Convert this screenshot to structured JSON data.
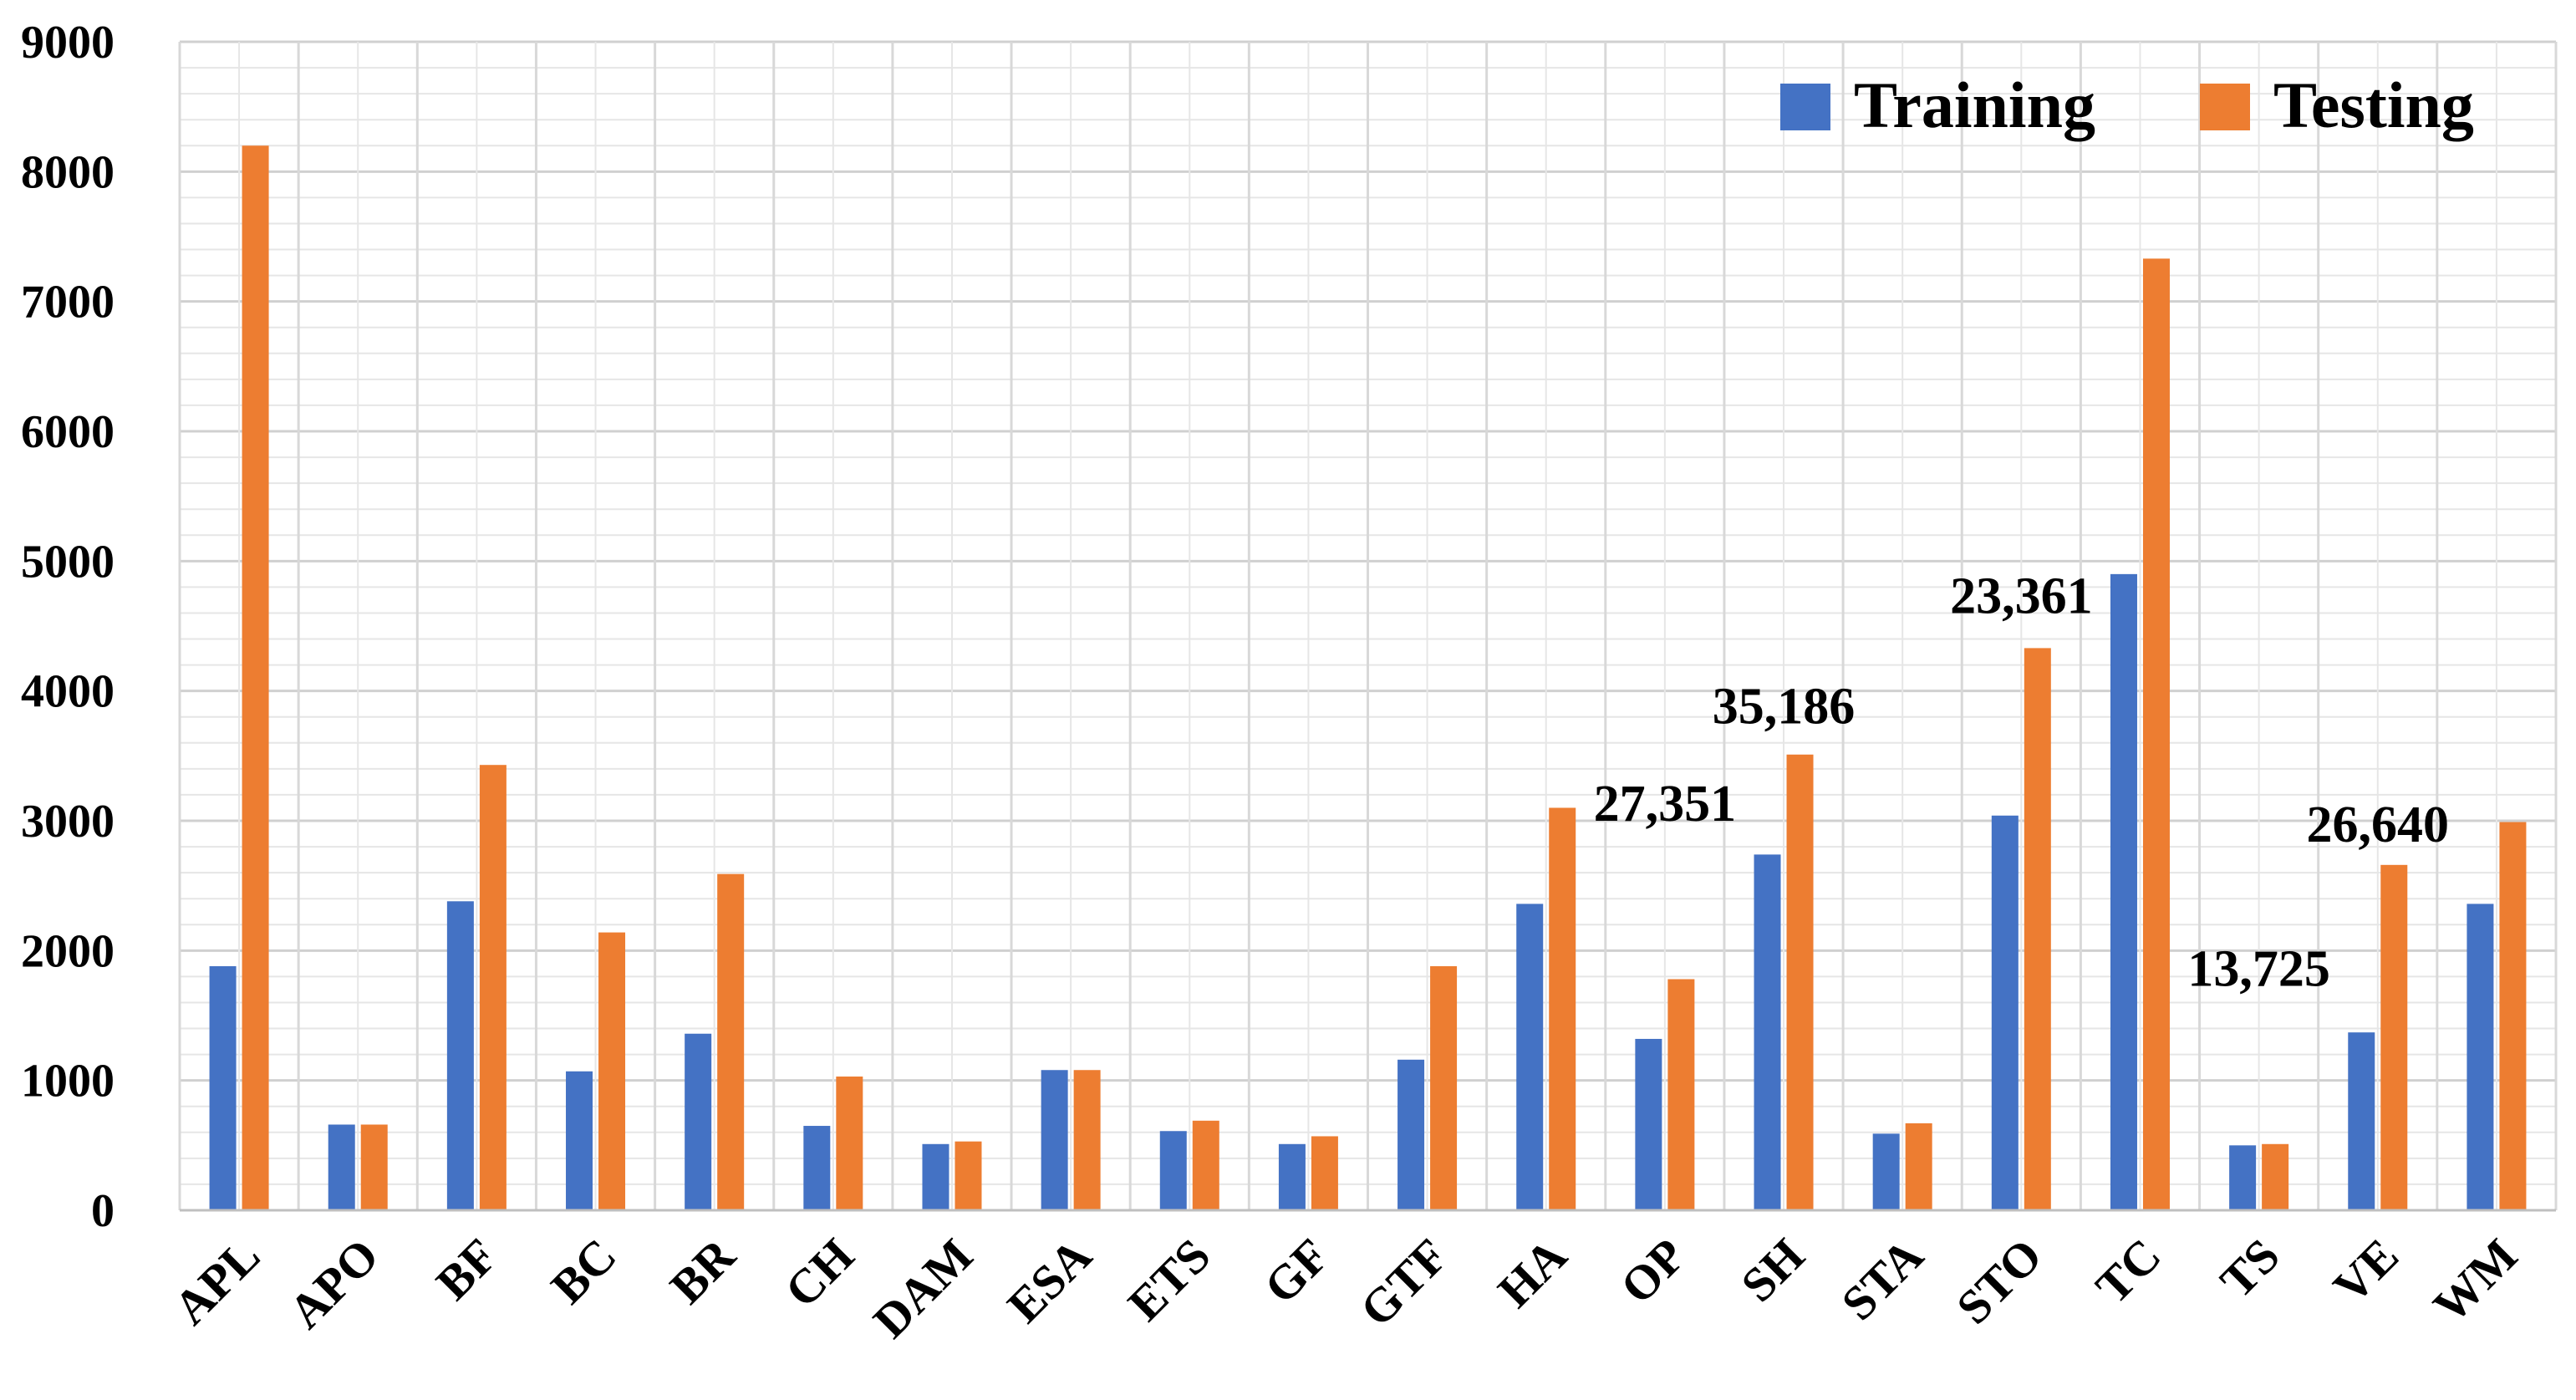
{
  "chart_data": {
    "type": "bar",
    "categories": [
      "APL",
      "APO",
      "BF",
      "BC",
      "BR",
      "CH",
      "DAM",
      "ESA",
      "ETS",
      "GF",
      "GTF",
      "HA",
      "OP",
      "SH",
      "STA",
      "STO",
      "TC",
      "TS",
      "VE",
      "WM"
    ],
    "series": [
      {
        "name": "Training",
        "color": "#4472C4",
        "values": [
          1880,
          660,
          2380,
          1070,
          1360,
          650,
          510,
          1080,
          610,
          510,
          1160,
          2360,
          1320,
          2740,
          590,
          3040,
          4900,
          500,
          1370,
          2360
        ]
      },
      {
        "name": "Testing",
        "color": "#ED7D31",
        "values": [
          8200,
          660,
          3430,
          2140,
          2590,
          1030,
          530,
          1080,
          690,
          570,
          1880,
          3100,
          1780,
          3510,
          670,
          4330,
          7330,
          510,
          2660,
          2990
        ]
      }
    ],
    "yticks": [
      "0",
      "1000",
      "2000",
      "3000",
      "4000",
      "5000",
      "6000",
      "7000",
      "8000",
      "9000"
    ],
    "ylim": [
      0,
      9000
    ],
    "grid": true,
    "legend_position": "top-right",
    "annotations": [
      {
        "text": "27,351",
        "category": "OP",
        "y": 3000
      },
      {
        "text": "35,186",
        "category": "SH",
        "y": 3750
      },
      {
        "text": "23,361",
        "category": "STO",
        "y": 4600
      },
      {
        "text": "13,725",
        "category": "TS",
        "y": 1730
      },
      {
        "text": "26,640",
        "category": "VE",
        "y": 2840
      }
    ],
    "title": "",
    "xlabel": "",
    "ylabel": ""
  }
}
